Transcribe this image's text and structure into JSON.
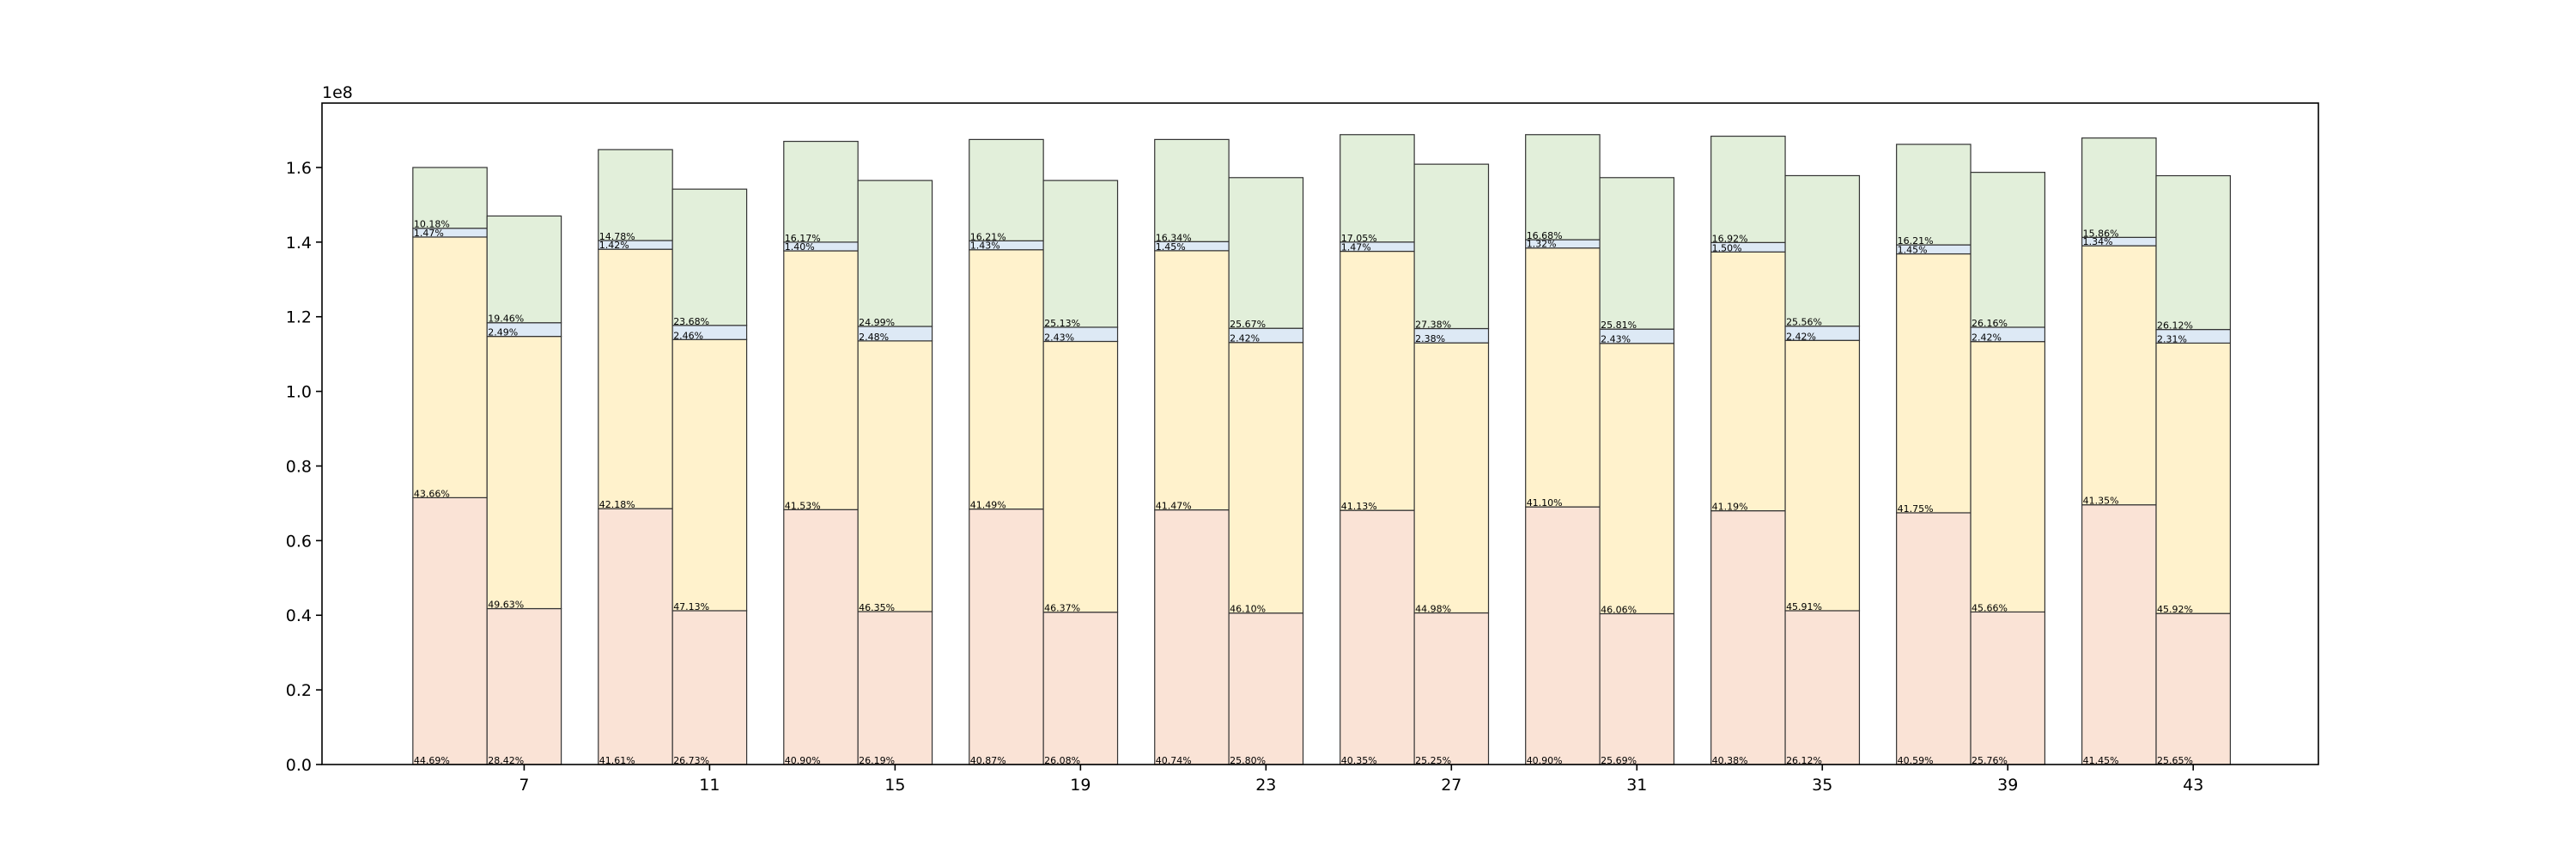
{
  "chart_data": {
    "type": "bar",
    "stacked": true,
    "title": "",
    "xlabel": "",
    "ylabel": "",
    "y_offset_text": "1e8",
    "y_scale": 100000000,
    "xlim": [
      2.64,
      45.7
    ],
    "ylim": [
      0,
      1.7726
    ],
    "bar_width": 1.6,
    "grid": false,
    "legend": "none",
    "x_ticks": [
      7,
      11,
      15,
      19,
      23,
      27,
      31,
      35,
      39,
      43
    ],
    "y_ticks": [
      "0.0",
      "0.2",
      "0.4",
      "0.6",
      "0.8",
      "1.0",
      "1.2",
      "1.4",
      "1.6"
    ],
    "segment_colors": [
      "#fae3d6",
      "#fff2cc",
      "#dde9f5",
      "#e2efda"
    ],
    "groups": [
      {
        "x": 7,
        "bars": [
          {
            "total": 1.6,
            "pcts": [
              44.69,
              43.66,
              1.47,
              10.18
            ]
          },
          {
            "total": 1.47,
            "pcts": [
              28.42,
              49.63,
              2.49,
              19.46
            ]
          }
        ]
      },
      {
        "x": 11,
        "bars": [
          {
            "total": 1.648,
            "pcts": [
              41.61,
              42.18,
              1.42,
              14.78
            ]
          },
          {
            "total": 1.542,
            "pcts": [
              26.73,
              47.13,
              2.46,
              23.68
            ]
          }
        ]
      },
      {
        "x": 15,
        "bars": [
          {
            "total": 1.67,
            "pcts": [
              40.9,
              41.53,
              1.4,
              16.17
            ]
          },
          {
            "total": 1.565,
            "pcts": [
              26.19,
              46.35,
              2.48,
              24.99
            ]
          }
        ]
      },
      {
        "x": 19,
        "bars": [
          {
            "total": 1.675,
            "pcts": [
              40.87,
              41.49,
              1.43,
              16.21
            ]
          },
          {
            "total": 1.565,
            "pcts": [
              26.08,
              46.37,
              2.43,
              25.13
            ]
          }
        ]
      },
      {
        "x": 23,
        "bars": [
          {
            "total": 1.675,
            "pcts": [
              40.74,
              41.47,
              1.45,
              16.34
            ]
          },
          {
            "total": 1.573,
            "pcts": [
              25.8,
              46.1,
              2.42,
              25.67
            ]
          }
        ]
      },
      {
        "x": 27,
        "bars": [
          {
            "total": 1.688,
            "pcts": [
              40.35,
              41.13,
              1.47,
              17.05
            ]
          },
          {
            "total": 1.609,
            "pcts": [
              25.25,
              44.98,
              2.38,
              27.38
            ]
          }
        ]
      },
      {
        "x": 31,
        "bars": [
          {
            "total": 1.688,
            "pcts": [
              40.9,
              41.1,
              1.32,
              16.68
            ]
          },
          {
            "total": 1.573,
            "pcts": [
              25.69,
              46.06,
              2.43,
              25.81
            ]
          }
        ]
      },
      {
        "x": 35,
        "bars": [
          {
            "total": 1.684,
            "pcts": [
              40.38,
              41.19,
              1.5,
              16.92
            ]
          },
          {
            "total": 1.578,
            "pcts": [
              26.12,
              45.91,
              2.42,
              25.56
            ]
          }
        ]
      },
      {
        "x": 39,
        "bars": [
          {
            "total": 1.662,
            "pcts": [
              40.59,
              41.75,
              1.45,
              16.21
            ]
          },
          {
            "total": 1.587,
            "pcts": [
              25.76,
              45.66,
              2.42,
              26.16
            ]
          }
        ]
      },
      {
        "x": 43,
        "bars": [
          {
            "total": 1.679,
            "pcts": [
              41.45,
              41.35,
              1.34,
              15.86
            ]
          },
          {
            "total": 1.578,
            "pcts": [
              25.65,
              45.92,
              2.31,
              26.12
            ]
          }
        ]
      }
    ]
  }
}
